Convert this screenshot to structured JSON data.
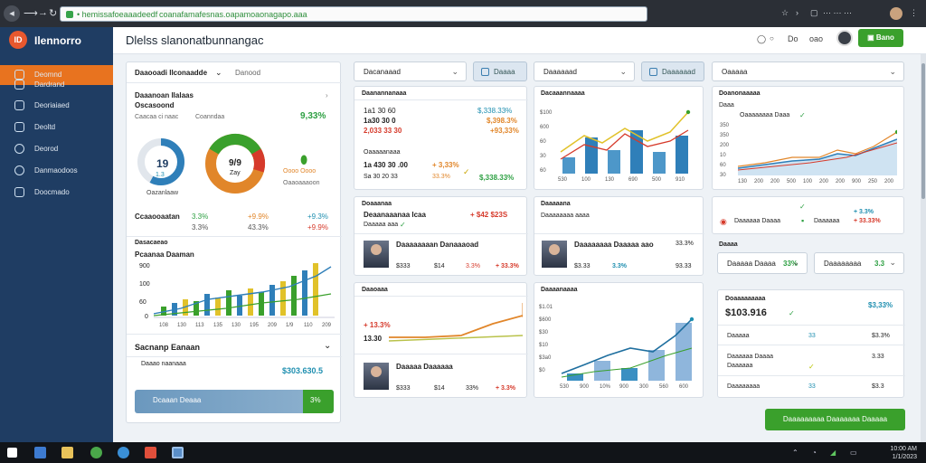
{
  "browser": {
    "url": "• hemissafoeaaadeedf coanafamafesnas.oapamoaonagapo.aaa",
    "icons": [
      "back-icon",
      "forward-icon",
      "refresh-icon",
      "lock-icon",
      "star-icon",
      "menu-icon"
    ]
  },
  "app": {
    "name": "Ilennorro",
    "page_title": "Dlelss slanonatbunnangac"
  },
  "header": {
    "help": "Do",
    "user_short": "oao",
    "action_button": "Bano"
  },
  "sidebar": {
    "items": [
      {
        "label": "Deomnd",
        "icon": "home-icon"
      },
      {
        "label": "Dardrand",
        "icon": "chart-icon"
      },
      {
        "label": "Deoriaiaed",
        "icon": "refresh-icon"
      },
      {
        "label": "Deoltd",
        "icon": "clock-icon"
      },
      {
        "label": "Deorod",
        "icon": "user-icon"
      },
      {
        "label": "Danmaodoos",
        "icon": "grid-icon"
      }
    ],
    "sub_label": "Doocmado"
  },
  "col1": {
    "dropdown": "Daaooadi Ilconaadde",
    "tab": "Danood",
    "card1": {
      "title": "Daaanoan Ilalaas",
      "subtitle": "Oscasoond",
      "meta": [
        "Caacaa ci naac",
        "Coanndaa"
      ],
      "big_value": "9,33%",
      "donut1_value": "19",
      "donut1_sub": "1.3",
      "donut1_caption": "Oazanlaaw",
      "donut2_value": "9/9",
      "donut2_sub": "Zay",
      "legend_items": [
        "Oooo Oooo",
        "Oaaoaaaoon"
      ],
      "stats_label": "Ccaaooaatan",
      "stats": [
        {
          "a": "3.3%",
          "b": "+9.9%",
          "c": "+9.3%"
        },
        {
          "a": "3.3%",
          "b": "43.3%",
          "c": "+9.9%"
        }
      ]
    },
    "card2": {
      "title": "Dasacaeao",
      "subtitle": "Pcaanaa Daaman",
      "ylabels": [
        "900",
        "100",
        "60",
        "0"
      ],
      "xlabels": [
        "108",
        "130",
        "113",
        "135",
        "130",
        "195",
        "209",
        "1/9",
        "110",
        "209"
      ]
    },
    "card3": {
      "title": "Sacnanp Eanaan",
      "row1_label": "Daaao naanaaa",
      "row1_value": "$303.630.5",
      "bar_label": "Dcaaan Deaaa",
      "bar_badge": "3%"
    }
  },
  "col2": {
    "dropdown": "Dacanaaad",
    "button": "Daaaa",
    "card1": {
      "title": "Daanannanaaa",
      "rows": [
        {
          "name": "1a1 30 60",
          "value": "$,338.33%"
        },
        {
          "name": "1a30 30 0",
          "value": "$,398.3%"
        },
        {
          "name": "2,033 33 30",
          "value": "+93,33%"
        }
      ],
      "sub_title": "Oaaaaanaaa",
      "sub_row": {
        "name": "1a 430 30 .00",
        "value": "+ 3,33%"
      },
      "sub_row2": {
        "name": "Sa 30 20 33",
        "value": "33.3%"
      }
    },
    "card2": {
      "title": "Doaaanaa",
      "row_title": "Deaanaaanaa Icaa",
      "row_value": "+ $42 $23S",
      "row_sub": "Daaaaa aaa",
      "person_name": "Daaaaaaaan Danaaaoad",
      "person_stats": [
        "$333",
        "$14",
        "3.3%",
        "+ 33.3%"
      ]
    },
    "card3": {
      "title": "Daaoaaa",
      "values": [
        "+ 13.3%",
        "13.30"
      ],
      "person_name": "Daaaaa Daaaaaa",
      "person_stats": [
        "$333",
        "$14",
        "33%",
        "+ 3.3%"
      ]
    }
  },
  "col3": {
    "dropdown": "Daaaaaad",
    "button": "Daaaaaad",
    "card1": {
      "title": "Dacaaannaaaa",
      "ylabels": [
        "$100",
        "600",
        "60",
        "30",
        "60"
      ],
      "xlabels": [
        "530",
        "100",
        "130",
        "690",
        "500",
        "910"
      ]
    },
    "card2": {
      "title": "Daaaaana",
      "subtitle": "Daaaaaaaa aaaa",
      "person_name": "Daaaaaaaa Daaaaa aao",
      "person_stats": [
        "$3.33",
        "3.3%",
        "93.33"
      ],
      "person_sub": "33.3%"
    },
    "card3": {
      "title": "Daaaanaaaa",
      "ylabels": [
        "$1.01",
        "$600",
        "$30",
        "$10",
        "$3a0",
        "$0"
      ],
      "xlabels": [
        "530",
        "900",
        "10%",
        "900",
        "300",
        "560",
        "600"
      ]
    }
  },
  "col4": {
    "dropdown": "Oaaaaa",
    "card1": {
      "title": "Doanonaaaaa",
      "subtitle": "Daaa",
      "legend": [
        "Oaaaaaaaa Daaa"
      ],
      "ylabels": [
        "350",
        "350",
        "200",
        "10",
        "60",
        "30"
      ],
      "xlabels": [
        "130",
        "200",
        "200",
        "500",
        "100",
        "200",
        "200",
        "900",
        "250",
        "200"
      ]
    },
    "card2": {
      "items": [
        {
          "label": "Daaaaaa Daaaa",
          "value": "+ 3.3%"
        },
        {
          "label": "Daaaaaa",
          "value": "+ 33.33%"
        }
      ],
      "dropdowns": [
        {
          "label": "Daaaaa Daaaa",
          "value": "33%"
        },
        {
          "label": "Daaaaaaaa",
          "value": "3.3"
        }
      ],
      "header": "Daaaa"
    },
    "card3": {
      "title": "Doaaaaaaaaa",
      "big_value": "$103.916",
      "top_value": "$3,33%",
      "rows": [
        {
          "label": "Daaaaa",
          "mid": "33",
          "value": "$3.3%"
        },
        {
          "label": "Daaaaaa Daaaa",
          "mid": "",
          "value": "3.33"
        },
        {
          "label": "Daaaaaa",
          "mid": "",
          "value": ""
        },
        {
          "label": "Daaaaaaaa",
          "mid": "33",
          "value": "$3.3"
        }
      ]
    },
    "button": "Daaaaaaaaa Daaaaaaa Daaaaa"
  },
  "taskbar": {
    "time": "10:00 AM",
    "date": "1/1/2023"
  },
  "colors": {
    "accent": "#e8731f",
    "sidebar": "#1f3d63",
    "green": "#3aa02c",
    "blue": "#3a8fc2",
    "orange": "#e1862a",
    "red": "#d63a2b"
  }
}
